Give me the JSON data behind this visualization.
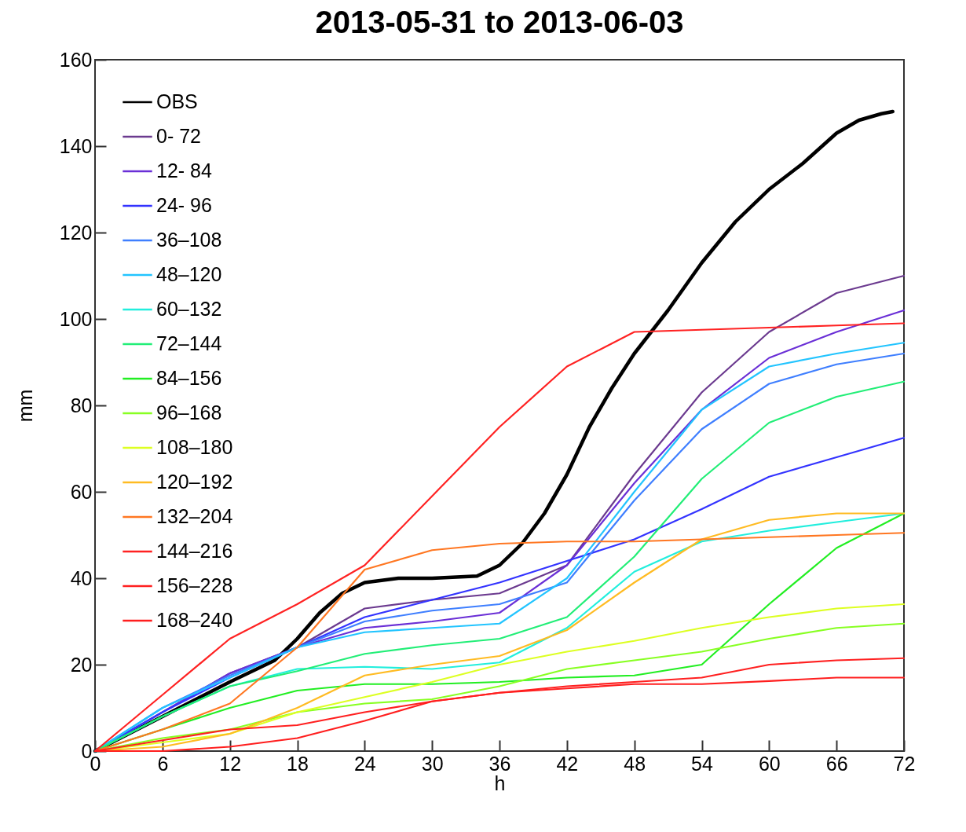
{
  "chart_data": {
    "type": "line",
    "title": "2013-05-31 to 2013-06-03",
    "xlabel": "h",
    "ylabel": "mm",
    "x": [
      0,
      6,
      12,
      18,
      24,
      30,
      36,
      42,
      48,
      54,
      60,
      66,
      72
    ],
    "xlim": [
      0,
      72
    ],
    "xticks": [
      0,
      6,
      12,
      18,
      24,
      30,
      36,
      42,
      48,
      54,
      60,
      66,
      72
    ],
    "ylim": [
      0,
      160
    ],
    "yticks": [
      0,
      20,
      40,
      60,
      80,
      100,
      120,
      140,
      160
    ],
    "grid": false,
    "legend": "top left",
    "marker": "none",
    "line_style": "solid",
    "series": [
      {
        "name": "OBS",
        "color": "#000000",
        "x": [
          0,
          6,
          12,
          16,
          18,
          20,
          22,
          24,
          27,
          30,
          34,
          36,
          38,
          40,
          42,
          44,
          46,
          48,
          51,
          54,
          57,
          60,
          63,
          66,
          68,
          70,
          71
        ],
        "values": [
          0,
          8,
          16,
          21,
          26,
          32,
          36.5,
          39,
          40,
          40,
          40.5,
          43,
          48,
          55,
          64,
          75,
          84,
          92,
          102,
          113,
          122.5,
          130,
          136,
          143,
          146,
          147.5,
          148
        ]
      },
      {
        "name": "0- 72",
        "color": "#6b3a8f",
        "values": [
          0,
          9,
          18,
          24,
          33,
          35,
          36.5,
          43,
          64,
          83,
          97,
          106,
          110
        ]
      },
      {
        "name": "12- 84",
        "color": "#6a2fd6",
        "values": [
          0,
          9,
          18,
          24,
          28.5,
          30,
          32,
          43,
          62,
          79,
          91,
          97,
          102
        ]
      },
      {
        "name": "24- 96",
        "color": "#3333ff",
        "values": [
          0,
          9,
          17,
          24,
          31,
          35,
          39,
          44,
          49,
          56,
          63.5,
          68,
          72.5
        ]
      },
      {
        "name": "36–108",
        "color": "#3f7fff",
        "values": [
          0,
          10,
          17.5,
          24,
          30,
          32.5,
          34,
          39,
          58,
          74.5,
          85,
          89.5,
          92
        ]
      },
      {
        "name": "48–120",
        "color": "#22c4ff",
        "values": [
          0,
          10,
          17,
          24,
          27.5,
          28.5,
          29.5,
          40,
          60,
          79,
          89,
          92,
          94.5
        ]
      },
      {
        "name": "60–132",
        "color": "#22eedd",
        "values": [
          0,
          8,
          15,
          19,
          19.5,
          19,
          20.5,
          28.5,
          41.5,
          48.5,
          51,
          53,
          55
        ]
      },
      {
        "name": "72–144",
        "color": "#22ee77",
        "values": [
          0,
          8,
          15,
          18.5,
          22.5,
          24.5,
          26,
          31,
          45,
          63,
          76,
          82,
          85.5
        ]
      },
      {
        "name": "84–156",
        "color": "#22ee22",
        "values": [
          0,
          5,
          10,
          14,
          15.5,
          15.5,
          16,
          17,
          17.5,
          20,
          34,
          47,
          55
        ]
      },
      {
        "name": "96–168",
        "color": "#88ff22",
        "values": [
          0,
          3,
          5,
          9,
          11,
          12,
          15,
          19,
          21,
          23,
          26,
          28.5,
          29.5
        ]
      },
      {
        "name": "108–180",
        "color": "#ddff22",
        "values": [
          0,
          2,
          4,
          9,
          12.5,
          16,
          20,
          23,
          25.5,
          28.5,
          31,
          33,
          34
        ]
      },
      {
        "name": "120–192",
        "color": "#ffbb22",
        "values": [
          0,
          1,
          4,
          10,
          17.5,
          20,
          22,
          28,
          39,
          49,
          53.5,
          55,
          55
        ]
      },
      {
        "name": "132–204",
        "color": "#ff7722",
        "values": [
          0,
          5,
          11,
          24,
          42,
          46.5,
          48,
          48.5,
          48.5,
          49,
          49.5,
          50,
          50.5
        ]
      },
      {
        "name": "144–216",
        "color": "#ff2222",
        "values": [
          0,
          13,
          26,
          34,
          43,
          59,
          75,
          89,
          97,
          97.5,
          98,
          98.5,
          99
        ]
      },
      {
        "name": "156–228",
        "color": "#ff2020",
        "values": [
          0,
          2.5,
          5,
          6,
          9,
          11.5,
          13.5,
          15,
          16,
          17,
          20,
          21,
          21.5
        ]
      },
      {
        "name": "168–240",
        "color": "#ff1e1e",
        "values": [
          0,
          0,
          1,
          3,
          7,
          11.5,
          13.5,
          14.5,
          15.5,
          15.5,
          16.2,
          17,
          17
        ]
      }
    ]
  }
}
